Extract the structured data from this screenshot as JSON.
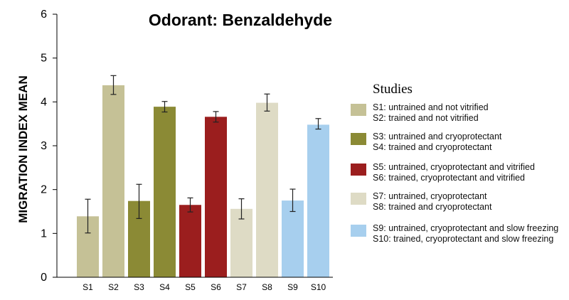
{
  "chart_data": {
    "type": "bar",
    "title": "Odorant: Benzaldehyde",
    "xlabel": "",
    "ylabel": "MIGRATION INDEX MEAN",
    "ylim": [
      0,
      6
    ],
    "yticks": [
      "0",
      "1",
      "2",
      "3",
      "4",
      "5",
      "6"
    ],
    "grid": false,
    "legend_position": "right",
    "categories": [
      "S1",
      "S2",
      "S3",
      "S4",
      "S5",
      "S6",
      "S7",
      "S8",
      "S9",
      "S10"
    ],
    "values": [
      1.39,
      4.38,
      1.74,
      3.89,
      1.65,
      3.66,
      1.56,
      3.98,
      1.75,
      3.48
    ],
    "error_low": [
      1.01,
      4.17,
      1.34,
      3.77,
      1.49,
      3.54,
      1.33,
      3.79,
      1.5,
      3.38
    ],
    "error_high": [
      1.78,
      4.6,
      2.12,
      4.01,
      1.81,
      3.78,
      1.79,
      4.18,
      2.01,
      3.62
    ],
    "colors": [
      "#c5c196",
      "#c5c196",
      "#8b8a35",
      "#8b8a35",
      "#9b1e1e",
      "#9b1e1e",
      "#dedbc5",
      "#dedbc5",
      "#a7cfee",
      "#a7cfee"
    ],
    "legend": {
      "title": "Studies",
      "groups": [
        {
          "color": "#c5c196",
          "lines": [
            "S1: untrained and not vitrified",
            "S2: trained and not vitrified"
          ]
        },
        {
          "color": "#8b8a35",
          "lines": [
            "S3: untrained and cryoprotectant",
            "S4: trained and cryoprotectant"
          ]
        },
        {
          "color": "#9b1e1e",
          "lines": [
            "S5: untrained, cryoprotectant and vitrified",
            "S6: trained, cryoprotectant and vitrified"
          ]
        },
        {
          "color": "#dedbc5",
          "lines": [
            "S7: untrained, cryoprotectant",
            "S8: trained and cryoprotectant"
          ]
        },
        {
          "color": "#a7cfee",
          "lines": [
            "S9: untrained, cryoprotectant and slow freezing",
            "S10: trained, cryoprotectant and slow freezing"
          ]
        }
      ]
    }
  }
}
